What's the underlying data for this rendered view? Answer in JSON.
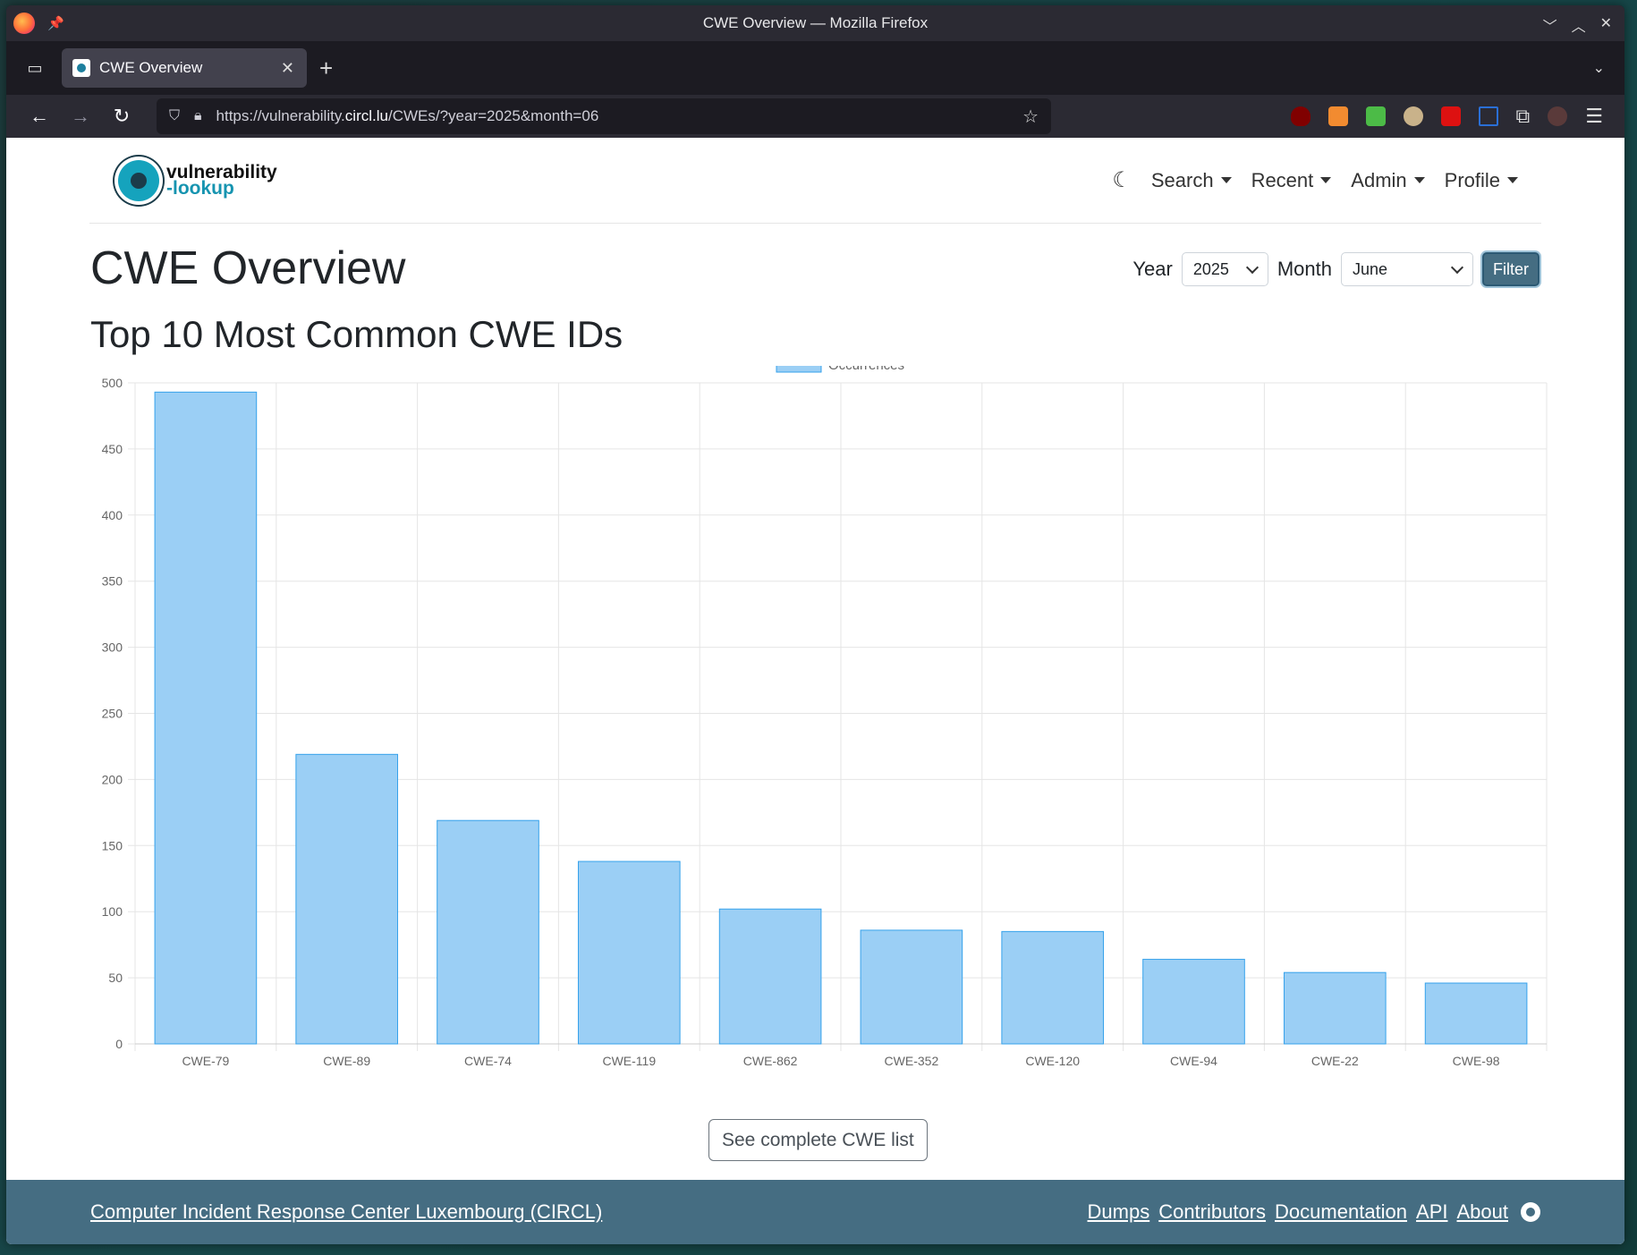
{
  "window": {
    "title": "CWE Overview — Mozilla Firefox",
    "tab_title": "CWE Overview",
    "url_prefix": "https://vulnerability.",
    "url_host": "circl.lu",
    "url_path": "/CWEs/?year=2025&month=06"
  },
  "site": {
    "logo_line1": "vulnerability",
    "logo_line2": "-lookup",
    "nav": {
      "search": "Search",
      "recent": "Recent",
      "admin": "Admin",
      "profile": "Profile"
    }
  },
  "page": {
    "title": "CWE Overview",
    "filter": {
      "year_label": "Year",
      "year_value": "2025",
      "month_label": "Month",
      "month_value": "June",
      "button": "Filter"
    },
    "section_title": "Top 10 Most Common CWE IDs",
    "see_all_button": "See complete CWE list"
  },
  "chart_data": {
    "type": "bar",
    "categories": [
      "CWE-79",
      "CWE-89",
      "CWE-74",
      "CWE-119",
      "CWE-862",
      "CWE-352",
      "CWE-120",
      "CWE-94",
      "CWE-22",
      "CWE-98"
    ],
    "series": [
      {
        "name": "Occurrences",
        "values": [
          493,
          219,
          169,
          138,
          102,
          86,
          85,
          64,
          54,
          46
        ]
      }
    ],
    "ylim": [
      0,
      500
    ],
    "yticks": [
      0,
      50,
      100,
      150,
      200,
      250,
      300,
      350,
      400,
      450,
      500
    ],
    "grid": true,
    "legend": "top-center",
    "colors": {
      "fill": "#9bcff5",
      "stroke": "#36a2eb"
    }
  },
  "footer": {
    "org_link": "Computer Incident Response Center Luxembourg (CIRCL)",
    "links": [
      "Dumps",
      "Contributors",
      "Documentation",
      "API",
      "About"
    ]
  }
}
